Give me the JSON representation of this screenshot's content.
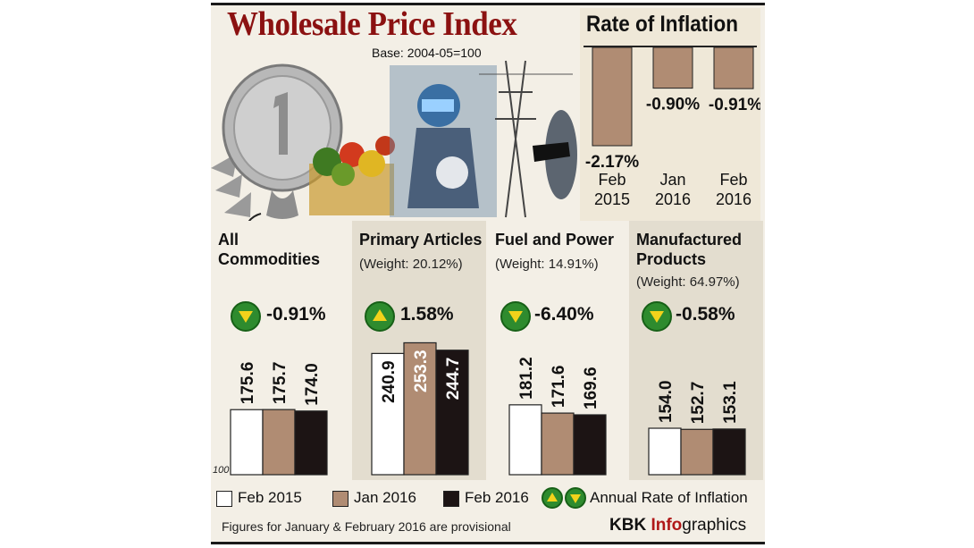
{
  "title": "Wholesale Price Index",
  "base_note": "Base: 2004-05=100",
  "inflation_panel": {
    "title": "Rate of Inflation",
    "bars": [
      {
        "label_line1": "Feb",
        "label_line2": "2015",
        "value": -2.17,
        "text": "-2.17%"
      },
      {
        "label_line1": "Jan",
        "label_line2": "2016",
        "value": -0.9,
        "text": "-0.90%"
      },
      {
        "label_line1": "Feb",
        "label_line2": "2016",
        "value": -0.91,
        "text": "-0.91%"
      }
    ]
  },
  "sections": [
    {
      "title_line1": "All",
      "title_line2": "Commodities",
      "weight": "",
      "rate": "-0.91%",
      "direction": "down"
    },
    {
      "title_line1": "Primary Articles",
      "title_line2": "",
      "weight": "(Weight: 20.12%)",
      "rate": "1.58%",
      "direction": "up"
    },
    {
      "title_line1": "Fuel and Power",
      "title_line2": "",
      "weight": "(Weight: 14.91%)",
      "rate": "-6.40%",
      "direction": "down"
    },
    {
      "title_line1": "Manufactured",
      "title_line2": "Products",
      "weight": "(Weight: 64.97%)",
      "rate": "-0.58%",
      "direction": "down"
    }
  ],
  "chart_data": [
    {
      "type": "bar",
      "title": "Wholesale Price Index",
      "subtitle": "Base: 2004-05=100",
      "categories": [
        "All Commodities",
        "Primary Articles",
        "Fuel and Power",
        "Manufactured Products"
      ],
      "series": [
        {
          "name": "Feb 2015",
          "values": [
            175.6,
            240.9,
            181.2,
            154.0
          ],
          "labels": [
            "175.6",
            "240.9",
            "181.2",
            "154.0"
          ],
          "color": "#ffffff"
        },
        {
          "name": "Jan 2016",
          "values": [
            175.7,
            253.3,
            171.6,
            152.7
          ],
          "labels": [
            "175.7",
            "253.3",
            "171.6",
            "152.7"
          ],
          "color": "#b08c73"
        },
        {
          "name": "Feb 2016",
          "values": [
            174.0,
            244.7,
            169.6,
            153.1
          ],
          "labels": [
            "174.0",
            "244.7",
            "169.6",
            "153.1"
          ],
          "color": "#1c1414"
        }
      ],
      "baseline_label": "100",
      "ylim": [
        100,
        260
      ],
      "grid": false,
      "legend": "bottom"
    },
    {
      "type": "bar",
      "title": "Rate of Inflation",
      "categories": [
        "Feb 2015",
        "Jan 2016",
        "Feb 2016"
      ],
      "values": [
        -2.17,
        -0.9,
        -0.91
      ],
      "labels": [
        "-2.17%",
        "-0.90%",
        "-0.91%"
      ],
      "color": "#b08c73",
      "grid": false
    }
  ],
  "legend": {
    "items": [
      "Feb 2015",
      "Jan 2016",
      "Feb 2016"
    ],
    "arrow_text": "Annual Rate of Inflation"
  },
  "footer": "Figures for January & February 2016 are provisional",
  "credit": {
    "part1": "KBK ",
    "part2": "Info",
    "part3": "graphics"
  },
  "colors": {
    "title": "#8b1111",
    "arrow_green": "#2e8b2e",
    "arrow_yellow": "#f2d21b",
    "jan_bar": "#b08c73",
    "feb16_bar": "#1c1414"
  }
}
